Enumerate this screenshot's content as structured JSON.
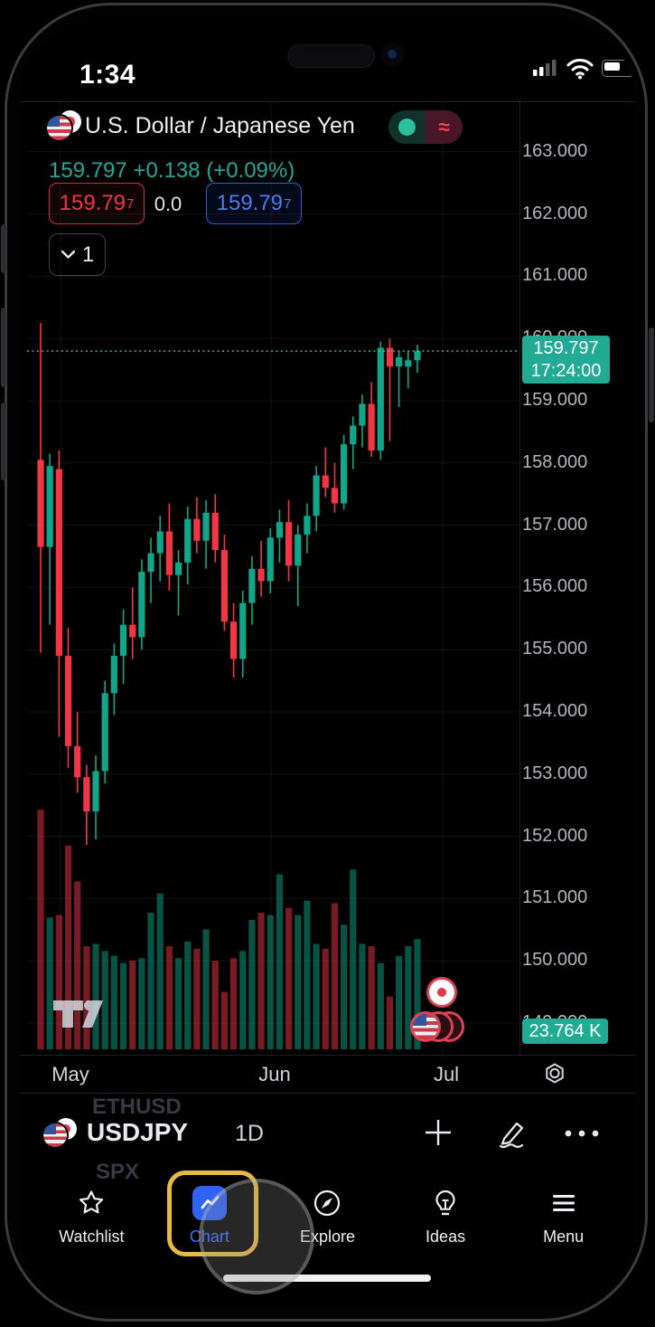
{
  "status_bar": {
    "time": "1:34"
  },
  "header": {
    "title": "U.S. Dollar / Japanese Yen",
    "price": "159.797",
    "change": "+0.138",
    "change_pct": "(+0.09%)",
    "toggle_glyph": "≈"
  },
  "trade_buttons": {
    "sell_main": "159.79",
    "sell_sup": "7",
    "spread": "0.0",
    "buy_main": "159.79",
    "buy_sup": "7"
  },
  "interval_selector": {
    "value": "1"
  },
  "price_scale": {
    "current_price": "159.797",
    "current_time": "17:24:00",
    "volume_label": "23.764 K"
  },
  "symbol_row": {
    "ghost_above": "ETHUSD",
    "symbol": "USDJPY",
    "interval": "1D",
    "ghost_below": "SPX"
  },
  "tab_bar": {
    "items": [
      {
        "label": "Watchlist",
        "active": false
      },
      {
        "label": "Chart",
        "active": true
      },
      {
        "label": "Explore",
        "active": false
      },
      {
        "label": "Ideas",
        "active": false
      },
      {
        "label": "Menu",
        "active": false
      }
    ]
  },
  "colors": {
    "up": "#11a689",
    "down": "#f23645",
    "badge_teal": "#22ab94",
    "price_up_text": "#26a69a",
    "sell_red": "#f23645",
    "buy_blue": "#477cf2",
    "tab_active_blue": "#3e6ef5",
    "highlight_yellow": "#e7ba45",
    "grid": "rgba(255,255,255,0.07)",
    "dotted_price_line": "#49b0a0"
  },
  "chart_data": {
    "type": "candlestick",
    "title": "USDJPY 1D",
    "xlabel": "",
    "ylabel": "",
    "legend_position": "none",
    "grid": true,
    "x_axis": {
      "labels": [
        "May",
        "Jun",
        "Jul"
      ]
    },
    "y_axis": {
      "ticks": [
        163,
        162,
        161,
        160,
        159,
        158,
        157,
        156,
        155,
        154,
        153,
        152,
        151,
        150,
        149
      ],
      "tick_labels": [
        "163.000",
        "162.000",
        "161.000",
        "160.000",
        "159.000",
        "158.000",
        "157.000",
        "156.000",
        "155.000",
        "154.000",
        "153.000",
        "152.000",
        "151.000",
        "150.000",
        "149.000"
      ],
      "range": [
        148.5,
        163.5
      ]
    },
    "current": {
      "price": 159.797,
      "time_label": "17:24:00",
      "volume_text": "23.764 K"
    },
    "ohlc": {
      "o": [
        158.05,
        156.65,
        157.9,
        154.9,
        153.45,
        152.95,
        152.4,
        153.05,
        154.3,
        154.9,
        155.4,
        155.2,
        156.25,
        156.55,
        156.9,
        156.2,
        156.4,
        157.1,
        156.75,
        157.2,
        156.6,
        155.45,
        154.85,
        155.75,
        156.3,
        156.1,
        156.8,
        157.05,
        156.35,
        156.85,
        157.15,
        157.8,
        157.6,
        157.35,
        158.3,
        158.6,
        158.95,
        158.2,
        159.85,
        159.55,
        159.55,
        159.65
      ],
      "h": [
        160.25,
        158.15,
        158.2,
        155.35,
        154.0,
        153.15,
        153.3,
        154.5,
        155.1,
        155.65,
        156.0,
        156.45,
        156.8,
        157.15,
        157.35,
        156.6,
        157.3,
        157.45,
        157.4,
        157.5,
        156.85,
        155.75,
        155.95,
        156.5,
        156.75,
        156.95,
        157.25,
        157.4,
        157.0,
        157.35,
        157.95,
        158.25,
        158.0,
        158.45,
        158.75,
        159.1,
        159.3,
        159.95,
        160.0,
        159.8,
        159.8,
        159.9
      ],
      "l": [
        154.95,
        155.4,
        153.6,
        153.1,
        152.7,
        151.86,
        151.95,
        152.85,
        153.95,
        154.45,
        154.85,
        155.0,
        155.75,
        156.1,
        155.95,
        155.55,
        156.05,
        156.55,
        156.3,
        156.4,
        155.3,
        154.55,
        154.55,
        155.4,
        155.85,
        155.9,
        156.4,
        156.1,
        155.7,
        156.55,
        156.9,
        157.45,
        157.2,
        157.25,
        157.9,
        158.25,
        158.1,
        158.05,
        158.35,
        158.9,
        159.2,
        159.45
      ],
      "c": [
        156.65,
        157.95,
        154.9,
        153.45,
        152.95,
        152.4,
        153.05,
        154.3,
        154.9,
        155.4,
        155.2,
        156.25,
        156.55,
        156.9,
        156.2,
        156.4,
        157.1,
        156.75,
        157.2,
        156.6,
        155.45,
        154.85,
        155.75,
        156.3,
        156.1,
        156.8,
        157.05,
        156.35,
        156.85,
        157.15,
        157.8,
        157.6,
        157.35,
        158.3,
        158.6,
        158.95,
        158.2,
        159.85,
        159.55,
        159.7,
        159.65,
        159.797
      ]
    },
    "volume_rel": [
      1.0,
      0.55,
      0.56,
      0.85,
      0.7,
      0.43,
      0.44,
      0.41,
      0.39,
      0.36,
      0.37,
      0.38,
      0.57,
      0.65,
      0.43,
      0.38,
      0.45,
      0.42,
      0.5,
      0.37,
      0.24,
      0.38,
      0.41,
      0.54,
      0.57,
      0.56,
      0.73,
      0.59,
      0.56,
      0.62,
      0.44,
      0.42,
      0.61,
      0.52,
      0.75,
      0.44,
      0.43,
      0.36,
      0.22,
      0.39,
      0.43,
      0.46
    ]
  }
}
